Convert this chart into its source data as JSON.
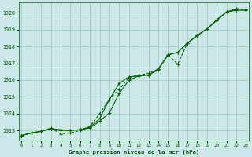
{
  "title": "Graphe pression niveau de la mer (hPa)",
  "background_color": "#cce8e8",
  "plot_bg_color": "#cce8e8",
  "grid_color": "#99ccbb",
  "text_color": "#005500",
  "x_ticks": [
    0,
    1,
    2,
    3,
    4,
    5,
    6,
    7,
    8,
    9,
    10,
    11,
    12,
    13,
    14,
    15,
    16,
    17,
    18,
    19,
    20,
    21,
    22,
    23
  ],
  "ylim": [
    1012.4,
    1020.6
  ],
  "xlim": [
    -0.3,
    23.3
  ],
  "yticks": [
    1013,
    1014,
    1015,
    1016,
    1017,
    1018,
    1019,
    1020
  ],
  "line1": [
    1012.7,
    1012.85,
    1012.95,
    1013.1,
    1013.05,
    1013.0,
    1013.05,
    1013.15,
    1013.55,
    1014.05,
    1015.2,
    1016.0,
    1016.25,
    1016.3,
    1016.6,
    1017.5,
    1017.65,
    1018.2,
    1018.65,
    1019.05,
    1019.55,
    1020.05,
    1020.15,
    1020.15
  ],
  "line2": [
    1012.7,
    1012.85,
    1012.95,
    1013.1,
    1013.0,
    1013.0,
    1013.05,
    1013.2,
    1013.7,
    1014.85,
    1015.8,
    1016.2,
    1016.25,
    1016.3,
    1016.65,
    1017.5,
    1017.65,
    1018.2,
    1018.65,
    1019.05,
    1019.55,
    1020.05,
    1020.2,
    1020.2
  ],
  "line3": [
    1012.7,
    1012.85,
    1012.95,
    1013.15,
    1012.8,
    1012.85,
    1013.0,
    1013.25,
    1014.0,
    1014.85,
    1015.45,
    1016.15,
    1016.3,
    1016.4,
    1016.65,
    1017.5,
    1016.95,
    1018.2,
    1018.65,
    1019.05,
    1019.6,
    1020.05,
    1020.25,
    1020.2
  ],
  "line_color": "#006600",
  "line_width": 0.8,
  "marker_size": 2.5,
  "line1_style": "-",
  "line2_style": "-",
  "line3_style": "--"
}
